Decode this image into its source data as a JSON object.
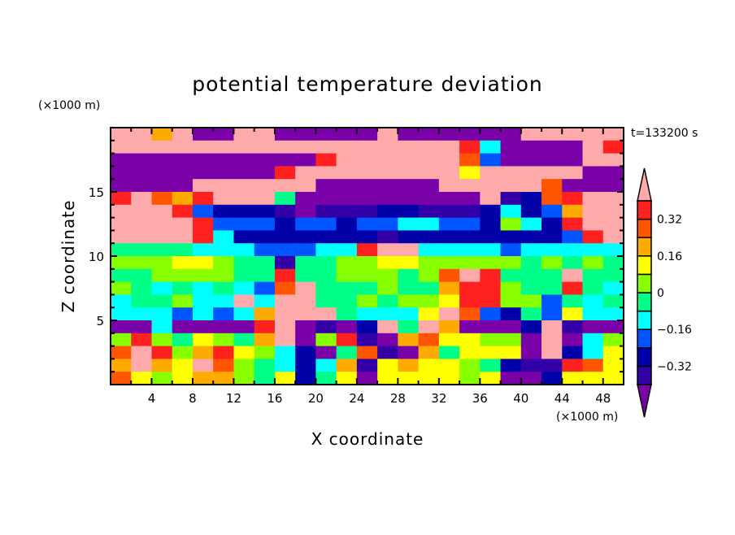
{
  "chart_data": {
    "type": "heatmap",
    "title": "potential temperature deviation",
    "xlabel": "X coordinate",
    "ylabel": "Z coordinate",
    "x_unit": "(×1000 m)",
    "y_unit": "(×1000 m)",
    "time_label": "t=133200 s",
    "xlim": [
      0,
      50
    ],
    "ylim": [
      0,
      20
    ],
    "x_ticks": [
      4,
      8,
      12,
      16,
      20,
      24,
      28,
      32,
      36,
      40,
      44,
      48
    ],
    "y_ticks": [
      5,
      10,
      15
    ],
    "x_centers": [
      1,
      3,
      5,
      7,
      9,
      11,
      13,
      15,
      17,
      19,
      21,
      23,
      25,
      27,
      29,
      31,
      33,
      35,
      37,
      39,
      41,
      43,
      45,
      47,
      49
    ],
    "z_centers": [
      19.5,
      18.5,
      17.5,
      16.5,
      15.5,
      14.5,
      13.5,
      12.5,
      11.5,
      10.5,
      9.5,
      8.5,
      7.5,
      6.5,
      5.5,
      4.5,
      3.5,
      2.5,
      1.5,
      0.5
    ],
    "values": [
      [
        0.5,
        0.5,
        0.2,
        0.5,
        -0.5,
        -0.5,
        0.5,
        0.5,
        -0.5,
        -0.5,
        -0.5,
        -0.5,
        -0.5,
        0.5,
        -0.5,
        -0.5,
        -0.5,
        -0.5,
        -0.5,
        -0.5,
        0.5,
        0.5,
        0.5,
        0.5,
        0.5
      ],
      [
        0.5,
        0.5,
        0.5,
        0.5,
        0.5,
        0.5,
        0.5,
        0.5,
        0.5,
        0.5,
        0.5,
        0.5,
        0.5,
        0.5,
        0.5,
        0.5,
        0.5,
        0.36,
        -0.12,
        -0.5,
        -0.5,
        -0.5,
        -0.5,
        0.5,
        0.36
      ],
      [
        -0.5,
        -0.5,
        -0.5,
        -0.5,
        -0.5,
        -0.5,
        -0.5,
        -0.5,
        -0.5,
        -0.5,
        0.36,
        0.5,
        0.5,
        0.5,
        0.5,
        0.5,
        0.5,
        0.28,
        -0.2,
        -0.5,
        -0.5,
        -0.5,
        -0.5,
        0.5,
        0.5
      ],
      [
        -0.5,
        -0.5,
        -0.5,
        -0.5,
        -0.5,
        -0.5,
        -0.5,
        -0.5,
        0.36,
        0.5,
        0.5,
        0.5,
        0.5,
        0.5,
        0.5,
        0.5,
        0.5,
        0.12,
        0.5,
        0.5,
        0.5,
        0.5,
        0.5,
        -0.5,
        -0.5
      ],
      [
        -0.5,
        -0.5,
        -0.5,
        -0.5,
        0.5,
        0.5,
        0.5,
        0.5,
        0.5,
        0.5,
        -0.5,
        -0.5,
        -0.5,
        -0.5,
        -0.5,
        -0.5,
        0.5,
        0.5,
        0.5,
        0.5,
        0.5,
        0.28,
        -0.5,
        -0.5,
        -0.5
      ],
      [
        0.36,
        0.5,
        0.28,
        0.2,
        0.36,
        0.5,
        0.5,
        0.5,
        -0.04,
        -0.5,
        -0.5,
        -0.5,
        -0.5,
        -0.5,
        -0.5,
        -0.5,
        -0.5,
        -0.5,
        0.5,
        -0.36,
        -0.28,
        0.28,
        0.36,
        0.5,
        0.5
      ],
      [
        0.5,
        0.5,
        0.5,
        0.36,
        -0.2,
        -0.28,
        -0.28,
        -0.28,
        -0.36,
        -0.5,
        -0.36,
        -0.36,
        -0.36,
        -0.28,
        -0.28,
        -0.36,
        -0.36,
        -0.36,
        -0.28,
        -0.12,
        -0.28,
        -0.2,
        0.2,
        0.5,
        0.5
      ],
      [
        0.5,
        0.5,
        0.5,
        0.5,
        0.36,
        -0.2,
        -0.2,
        -0.2,
        -0.28,
        -0.2,
        -0.2,
        -0.28,
        -0.2,
        -0.2,
        -0.12,
        -0.12,
        -0.2,
        -0.2,
        -0.28,
        0.04,
        -0.12,
        -0.28,
        0.36,
        0.5,
        0.5
      ],
      [
        0.5,
        0.5,
        0.5,
        0.5,
        0.36,
        -0.12,
        -0.28,
        -0.28,
        -0.28,
        -0.28,
        -0.28,
        -0.28,
        -0.28,
        -0.36,
        -0.28,
        -0.28,
        -0.28,
        -0.28,
        -0.28,
        -0.28,
        -0.28,
        -0.28,
        -0.2,
        0.36,
        0.5
      ],
      [
        -0.04,
        -0.04,
        -0.04,
        -0.04,
        -0.12,
        -0.12,
        -0.12,
        -0.2,
        -0.2,
        -0.2,
        -0.12,
        -0.12,
        0.36,
        0.5,
        0.5,
        -0.12,
        -0.12,
        -0.12,
        -0.12,
        -0.2,
        -0.12,
        -0.12,
        -0.12,
        -0.12,
        -0.12
      ],
      [
        0.04,
        0.04,
        0.04,
        0.12,
        0.12,
        0.04,
        -0.04,
        -0.04,
        -0.36,
        -0.04,
        -0.04,
        0.04,
        0.04,
        0.12,
        0.12,
        0.04,
        0.04,
        0.04,
        0.04,
        0.04,
        -0.04,
        0.04,
        -0.04,
        0.04,
        -0.04
      ],
      [
        -0.04,
        -0.04,
        0.04,
        0.04,
        0.04,
        0.04,
        -0.04,
        -0.04,
        0.36,
        -0.04,
        -0.04,
        0.04,
        0.04,
        0.04,
        -0.04,
        0.04,
        0.28,
        0.5,
        0.36,
        -0.04,
        -0.04,
        -0.04,
        0.5,
        -0.04,
        -0.04
      ],
      [
        0.04,
        -0.04,
        -0.12,
        -0.04,
        -0.12,
        -0.04,
        -0.12,
        -0.2,
        0.28,
        0.5,
        -0.04,
        -0.04,
        -0.04,
        0.04,
        -0.04,
        -0.04,
        0.2,
        0.36,
        0.36,
        0.04,
        -0.04,
        -0.04,
        0.36,
        -0.04,
        -0.12
      ],
      [
        -0.12,
        -0.04,
        -0.04,
        0.04,
        -0.12,
        -0.12,
        0.5,
        -0.12,
        0.5,
        0.5,
        -0.04,
        -0.04,
        0.04,
        -0.04,
        0.04,
        0.04,
        0.12,
        0.36,
        0.36,
        0.04,
        0.04,
        -0.2,
        -0.04,
        -0.12,
        -0.04
      ],
      [
        -0.12,
        -0.12,
        -0.12,
        -0.2,
        -0.12,
        -0.2,
        -0.12,
        0.2,
        0.5,
        0.5,
        0.5,
        -0.04,
        -0.12,
        -0.12,
        -0.12,
        0.12,
        0.5,
        0.28,
        -0.2,
        -0.28,
        -0.04,
        -0.2,
        0.12,
        -0.12,
        -0.12
      ],
      [
        -0.5,
        -0.5,
        -0.12,
        -0.5,
        -0.5,
        -0.5,
        -0.5,
        0.36,
        0.5,
        -0.5,
        -0.36,
        -0.5,
        -0.28,
        0.5,
        -0.04,
        0.5,
        0.2,
        -0.5,
        -0.5,
        -0.5,
        -0.28,
        0.5,
        -0.36,
        -0.5,
        -0.5
      ],
      [
        0.04,
        0.36,
        0.04,
        -0.04,
        0.12,
        0.04,
        -0.04,
        0.2,
        0.5,
        -0.5,
        0.04,
        0.36,
        -0.36,
        -0.5,
        0.2,
        0.28,
        0.12,
        0.12,
        0.04,
        0.04,
        -0.5,
        0.5,
        -0.5,
        -0.12,
        0.04
      ],
      [
        0.28,
        0.5,
        0.36,
        0.04,
        0.2,
        0.36,
        0.12,
        0.04,
        -0.12,
        -0.28,
        -0.5,
        -0.04,
        0.28,
        -0.36,
        -0.5,
        0.2,
        -0.04,
        0.12,
        0.12,
        0.12,
        -0.5,
        0.5,
        -0.28,
        -0.12,
        0.12
      ],
      [
        0.2,
        0.5,
        0.2,
        0.12,
        0.5,
        0.28,
        0.04,
        -0.04,
        -0.12,
        -0.28,
        -0.12,
        0.2,
        -0.36,
        0.12,
        0.2,
        0.12,
        0.12,
        0.04,
        -0.04,
        -0.28,
        -0.36,
        -0.36,
        0.36,
        0.28,
        0.12
      ],
      [
        0.28,
        0.12,
        0.04,
        0.12,
        0.2,
        0.2,
        0.04,
        -0.04,
        0.12,
        -0.28,
        -0.04,
        0.12,
        -0.5,
        0.12,
        0.12,
        0.12,
        0.12,
        0.04,
        0.12,
        -0.5,
        -0.5,
        -0.28,
        0.12,
        0.12,
        0.12
      ]
    ],
    "colorbar": {
      "levels": [
        -0.4,
        -0.32,
        -0.24,
        -0.16,
        -0.08,
        0,
        0.08,
        0.16,
        0.24,
        0.32,
        0.4
      ],
      "tick_labels": [
        "0.32",
        "0.16",
        "0",
        "−0.16",
        "−0.32"
      ],
      "tick_values": [
        0.32,
        0.16,
        0,
        -0.16,
        -0.32
      ],
      "colors": [
        "#7a00a8",
        "#3300a8",
        "#0000a8",
        "#0055ff",
        "#00ffff",
        "#00ff88",
        "#88ff00",
        "#ffff00",
        "#ffaa00",
        "#ff5500",
        "#ff2020",
        "#ffaaaa"
      ]
    }
  }
}
